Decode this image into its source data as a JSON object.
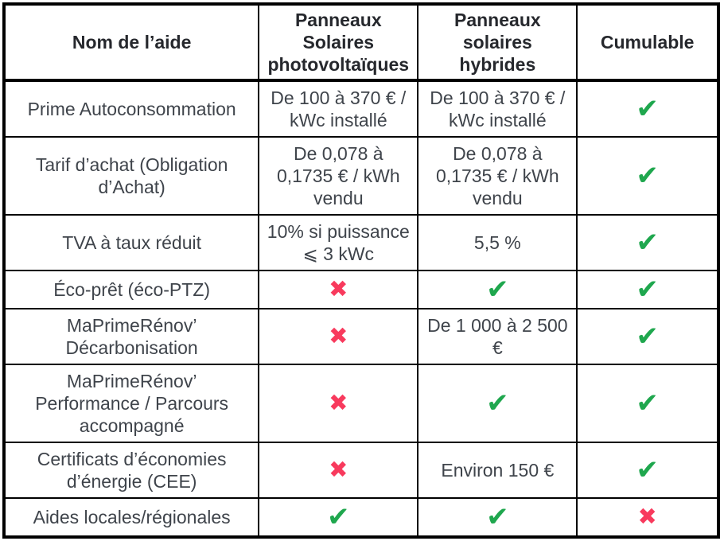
{
  "icons": {
    "check": "✔",
    "cross": "✖"
  },
  "colors": {
    "check": "#1fa74e",
    "cross": "#f83a5d",
    "border": "#000000",
    "header_text": "#26282d",
    "body_text": "#3f444b"
  },
  "table": {
    "columns": [
      {
        "key": "name",
        "label": "Nom de l’aide"
      },
      {
        "key": "pv",
        "label": "Panneaux\nSolaires\nphotovoltaïques"
      },
      {
        "key": "hybrid",
        "label": "Panneaux\nsolaires\nhybrides"
      },
      {
        "key": "cumulable",
        "label": "Cumulable"
      }
    ],
    "rows": [
      {
        "name": "Prime Autoconsommation",
        "pv": "De 100 à 370 € /\nkWc installé",
        "hybrid": "De 100 à 370 € /\nkWc installé",
        "cumulable": {
          "mark": "check"
        }
      },
      {
        "name": "Tarif d’achat (Obligation\nd’Achat)",
        "pv": "De 0,078 à\n0,1735 € / kWh\nvendu",
        "hybrid": "De 0,078 à\n0,1735 € / kWh\nvendu",
        "cumulable": {
          "mark": "check"
        }
      },
      {
        "name": "TVA à taux réduit",
        "pv": "10% si puissance\n⩽ 3 kWc",
        "hybrid": "5,5 %",
        "cumulable": {
          "mark": "check"
        }
      },
      {
        "name": "Éco-prêt (éco-PTZ)",
        "pv": {
          "mark": "cross"
        },
        "hybrid": {
          "mark": "check"
        },
        "cumulable": {
          "mark": "check"
        }
      },
      {
        "name": "MaPrimeRénov’\nDécarbonisation",
        "pv": {
          "mark": "cross"
        },
        "hybrid": "De 1 000 à 2 500\n€",
        "cumulable": {
          "mark": "check"
        }
      },
      {
        "name": "MaPrimeRénov’\nPerformance / Parcours\naccompagné",
        "pv": {
          "mark": "cross"
        },
        "hybrid": {
          "mark": "check"
        },
        "cumulable": {
          "mark": "check"
        }
      },
      {
        "name": "Certificats d’économies\nd’énergie (CEE)",
        "pv": {
          "mark": "cross"
        },
        "hybrid": "Environ 150 €",
        "cumulable": {
          "mark": "check"
        }
      },
      {
        "name": "Aides locales/régionales",
        "pv": {
          "mark": "check"
        },
        "hybrid": {
          "mark": "check"
        },
        "cumulable": {
          "mark": "cross"
        }
      }
    ]
  }
}
